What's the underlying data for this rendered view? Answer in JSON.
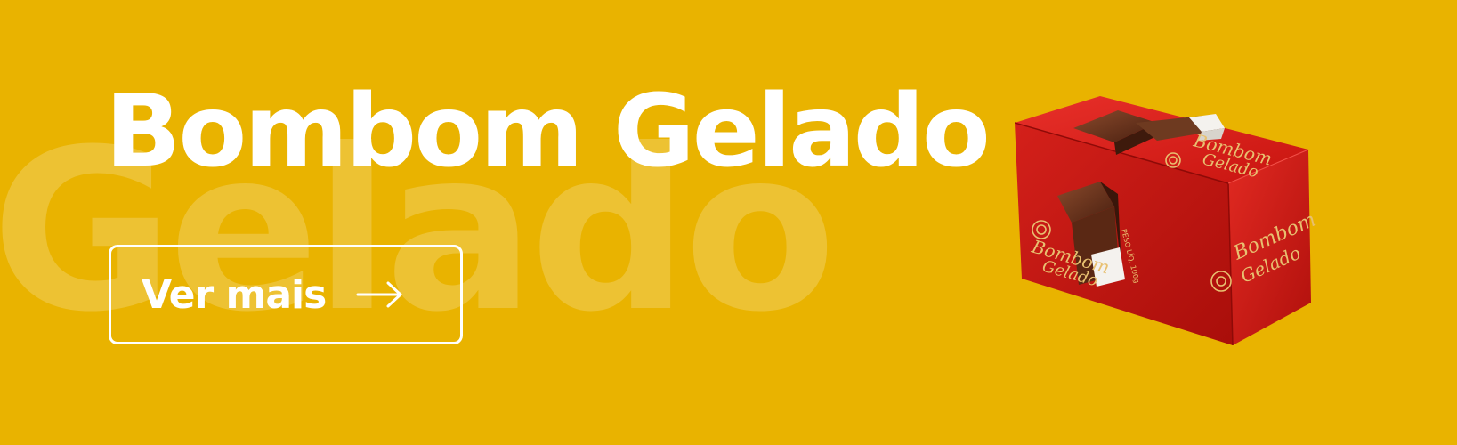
{
  "banner": {
    "background_color": "#E9B300",
    "watermark_text": "Gelado",
    "title": "Bombom Gelado",
    "cta_label": "Ver mais",
    "cta_icon": "arrow-right-icon"
  },
  "product": {
    "box_color": "#D01818",
    "box_top_text_1": "Bombom",
    "box_top_text_2": "Gelado",
    "box_left_text_1": "Bombom",
    "box_left_text_2": "Gelado",
    "box_front_text_1": "Bombom",
    "box_front_text_2": "Gelado",
    "logo_icon": "sun-logo-icon",
    "weight_text": "PESO LÍQ. 100g"
  }
}
